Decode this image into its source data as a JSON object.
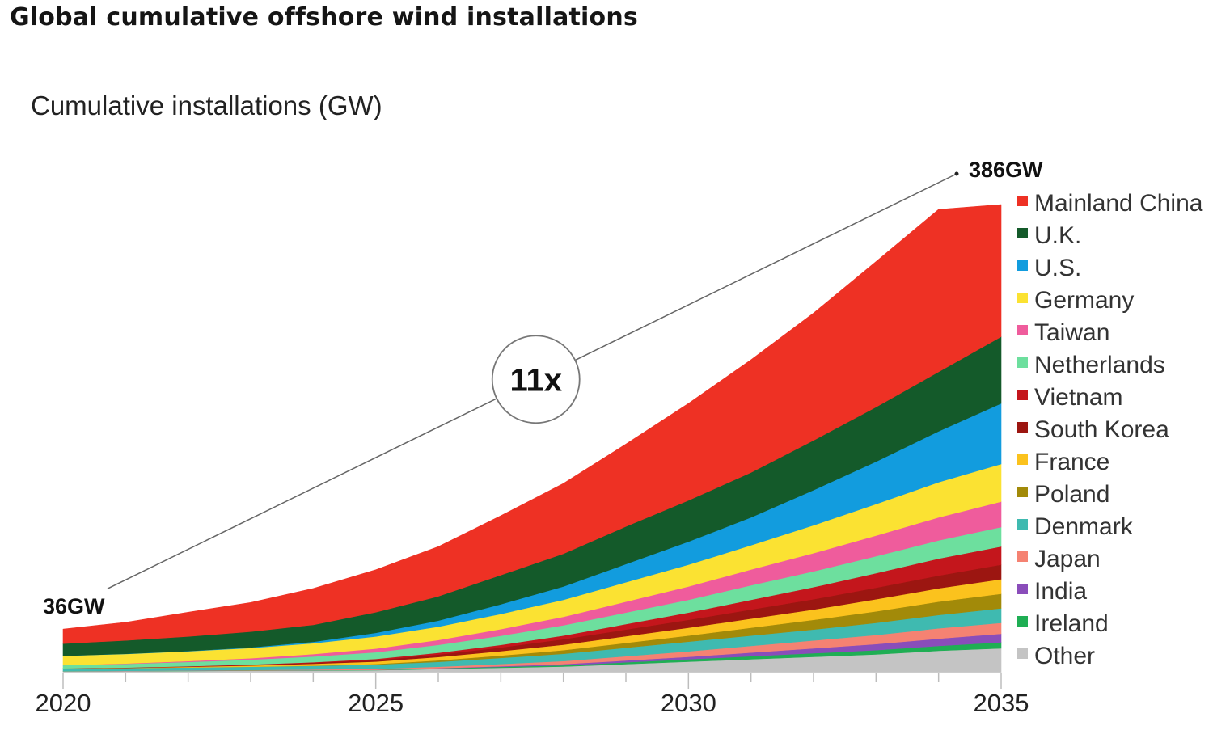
{
  "title": "Global cumulative offshore wind installations",
  "colors": {
    "Mainland China": "#ee3124",
    "U.K.": "#145a2a",
    "U.S.": "#129cde",
    "Germany": "#fbe232",
    "Taiwan": "#ef5c9c",
    "Netherlands": "#6ddf9e",
    "Vietnam": "#c4161c",
    "South Korea": "#9c1611",
    "France": "#fbc21d",
    "Poland": "#a28a09",
    "Denmark": "#3fbab0",
    "Japan": "#f58272",
    "India": "#8a4dba",
    "Ireland": "#1fae54",
    "Other": "#c4c4c4"
  },
  "chart_data": {
    "type": "area",
    "stacked": true,
    "ylabel": "Cumulative installations (GW)",
    "xlabel": "",
    "x": [
      2020,
      2021,
      2022,
      2023,
      2024,
      2025,
      2026,
      2027,
      2028,
      2029,
      2030,
      2031,
      2032,
      2033,
      2034,
      2035
    ],
    "x_ticks": [
      "2020",
      "2025",
      "2030",
      "2035"
    ],
    "xlim": [
      2020,
      2035
    ],
    "ylim": [
      0,
      400
    ],
    "grid": false,
    "legend_position": "right",
    "series": [
      {
        "name": "Other",
        "values": [
          1,
          1.2,
          1.4,
          1.6,
          1.8,
          2,
          3,
          4,
          5,
          7,
          9,
          11,
          13,
          15,
          18,
          20
        ]
      },
      {
        "name": "Ireland",
        "values": [
          0.2,
          0.2,
          0.2,
          0.3,
          0.3,
          0.3,
          0.5,
          0.8,
          1,
          1.5,
          2,
          2.5,
          3,
          3.5,
          4,
          5
        ]
      },
      {
        "name": "India",
        "values": [
          0,
          0,
          0,
          0,
          0,
          0,
          0.2,
          0.5,
          1,
          1.5,
          2,
          3,
          4,
          5,
          6,
          7
        ]
      },
      {
        "name": "Japan",
        "values": [
          0.1,
          0.1,
          0.2,
          0.3,
          0.5,
          0.8,
          1.2,
          1.8,
          2.5,
          3.5,
          4.5,
          5.5,
          6.5,
          7.5,
          8.5,
          9
        ]
      },
      {
        "name": "Denmark",
        "values": [
          2,
          2.3,
          2.5,
          2.7,
          3,
          3.5,
          4,
          5,
          6,
          7,
          8,
          8.5,
          9,
          10,
          11,
          12
        ]
      },
      {
        "name": "Poland",
        "values": [
          0,
          0,
          0,
          0,
          0.2,
          0.5,
          1.2,
          2,
          3,
          4,
          5,
          6.5,
          8,
          9.5,
          11,
          12
        ]
      },
      {
        "name": "France",
        "values": [
          0,
          0.1,
          0.5,
          1,
          1.5,
          2,
          2.8,
          3.6,
          4.5,
          5.5,
          6.5,
          7.5,
          8.5,
          10,
          11,
          12
        ]
      },
      {
        "name": "South Korea",
        "values": [
          0.1,
          0.2,
          0.3,
          0.5,
          0.8,
          1.2,
          2,
          3,
          4.5,
          5.5,
          6.5,
          7.5,
          8.5,
          9.5,
          10.5,
          12
        ]
      },
      {
        "name": "Vietnam",
        "values": [
          0.1,
          0.1,
          0.2,
          0.3,
          0.5,
          1,
          1.5,
          2.2,
          3,
          4.5,
          6,
          8,
          10,
          12,
          14,
          15
        ]
      },
      {
        "name": "Netherlands",
        "values": [
          2.6,
          3,
          3.5,
          4,
          4.7,
          5.5,
          6.5,
          7.5,
          8.5,
          9.5,
          10.5,
          12,
          13,
          14,
          15,
          16
        ]
      },
      {
        "name": "Taiwan",
        "values": [
          0.1,
          0.3,
          0.7,
          1.2,
          2,
          3,
          4,
          5.5,
          7,
          9,
          11,
          13,
          15,
          17,
          19,
          21
        ]
      },
      {
        "name": "Germany",
        "values": [
          7.7,
          7.9,
          8.1,
          8.4,
          8.9,
          10,
          11,
          12.5,
          14,
          16,
          18,
          20,
          23,
          26,
          29,
          31
        ]
      },
      {
        "name": "U.S.",
        "values": [
          0,
          0.1,
          0.2,
          0.5,
          1.2,
          3,
          5,
          8,
          11,
          15,
          19,
          23,
          29,
          35,
          42,
          50
        ]
      },
      {
        "name": "U.K.",
        "values": [
          10,
          11,
          12,
          13,
          14,
          17,
          20,
          24,
          27,
          31,
          34,
          37,
          41,
          45,
          49,
          55
        ]
      },
      {
        "name": "Mainland China",
        "values": [
          12,
          15,
          20,
          24,
          30,
          35,
          41,
          49,
          58,
          68,
          80,
          93,
          105,
          120,
          134,
          109
        ]
      }
    ],
    "legend_order": [
      "Mainland China",
      "U.K.",
      "U.S.",
      "Germany",
      "Taiwan",
      "Netherlands",
      "Vietnam",
      "South Korea",
      "France",
      "Poland",
      "Denmark",
      "Japan",
      "India",
      "Ireland",
      "Other"
    ],
    "annotations": {
      "start_label": "36GW",
      "end_label": "386GW",
      "multiplier": "11x"
    }
  }
}
